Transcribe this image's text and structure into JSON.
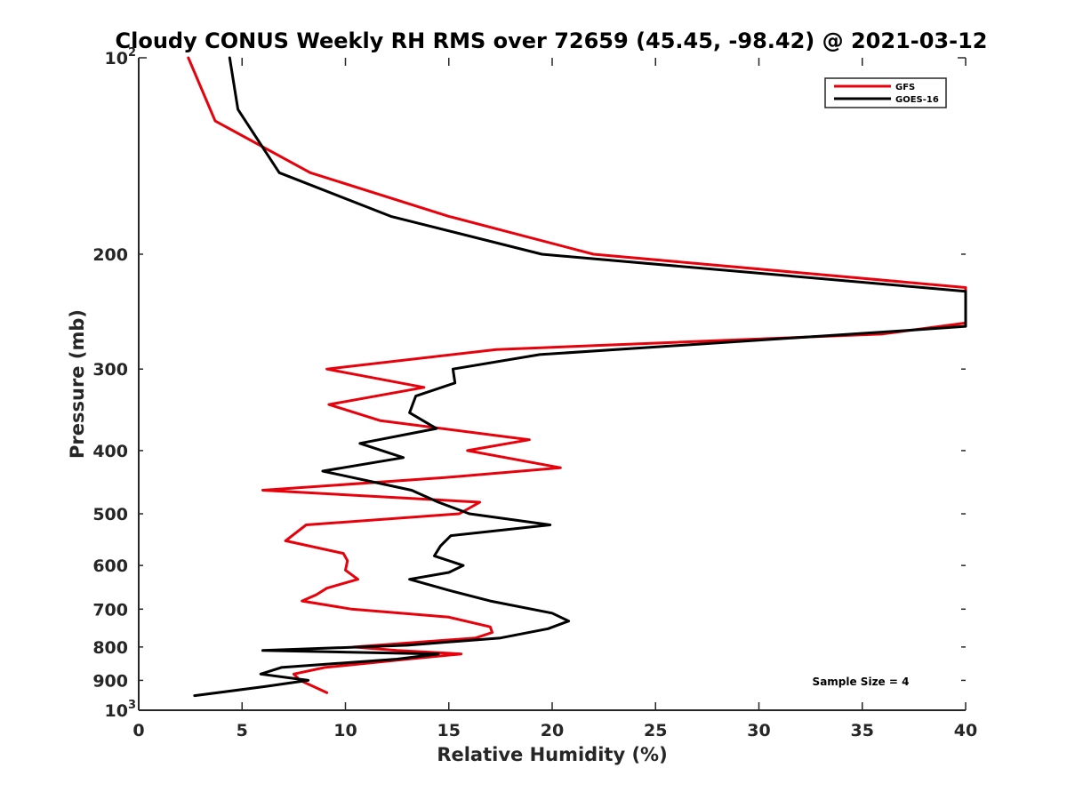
{
  "chart_data": {
    "type": "line",
    "title": "Cloudy CONUS Weekly RH RMS over 72659 (45.45, -98.42) @ 2021-03-12",
    "xlabel": "Relative Humidity (%)",
    "ylabel": "Pressure (mb)",
    "xlim": [
      0,
      40
    ],
    "ylim": [
      100,
      1000
    ],
    "y_scale": "log",
    "y_reversed": true,
    "grid": false,
    "legend_position": "top-right",
    "x_ticks": [
      "0",
      "5",
      "10",
      "15",
      "20",
      "25",
      "30",
      "35",
      "40"
    ],
    "y_ticks": [
      {
        "value": 100,
        "base": "10",
        "exp": "2"
      },
      {
        "value": 200,
        "base": "200",
        "exp": ""
      },
      {
        "value": 300,
        "base": "300",
        "exp": ""
      },
      {
        "value": 400,
        "base": "400",
        "exp": ""
      },
      {
        "value": 500,
        "base": "500",
        "exp": ""
      },
      {
        "value": 600,
        "base": "600",
        "exp": ""
      },
      {
        "value": 700,
        "base": "700",
        "exp": ""
      },
      {
        "value": 800,
        "base": "800",
        "exp": ""
      },
      {
        "value": 900,
        "base": "900",
        "exp": ""
      },
      {
        "value": 1000,
        "base": "10",
        "exp": "3"
      }
    ],
    "series": [
      {
        "name": "GFS",
        "color": "#e8000b",
        "points": [
          [
            2.4,
            100
          ],
          [
            3.7,
            125
          ],
          [
            8.3,
            150
          ],
          [
            15.0,
            175
          ],
          [
            22.0,
            200
          ],
          [
            40.0,
            225
          ],
          [
            40.0,
            255
          ],
          [
            36.0,
            265
          ],
          [
            17.3,
            280
          ],
          [
            9.1,
            300
          ],
          [
            13.8,
            320
          ],
          [
            9.2,
            340
          ],
          [
            11.7,
            360
          ],
          [
            18.9,
            385
          ],
          [
            15.9,
            400
          ],
          [
            20.4,
            425
          ],
          [
            14.8,
            440
          ],
          [
            6.0,
            460
          ],
          [
            16.5,
            480
          ],
          [
            15.5,
            500
          ],
          [
            8.1,
            520
          ],
          [
            7.1,
            550
          ],
          [
            9.9,
            575
          ],
          [
            10.1,
            590
          ],
          [
            10.0,
            610
          ],
          [
            10.6,
            630
          ],
          [
            9.1,
            650
          ],
          [
            8.6,
            665
          ],
          [
            7.9,
            680
          ],
          [
            10.3,
            700
          ],
          [
            15.0,
            720
          ],
          [
            17.0,
            745
          ],
          [
            17.1,
            760
          ],
          [
            16.3,
            775
          ],
          [
            10.4,
            800
          ],
          [
            12.5,
            810
          ],
          [
            15.6,
            820
          ],
          [
            13.0,
            835
          ],
          [
            9.0,
            860
          ],
          [
            7.5,
            880
          ],
          [
            7.8,
            900
          ],
          [
            9.1,
            940
          ]
        ]
      },
      {
        "name": "GOES-16",
        "color": "#000000",
        "points": [
          [
            4.4,
            100
          ],
          [
            4.8,
            120
          ],
          [
            6.8,
            150
          ],
          [
            12.2,
            175
          ],
          [
            19.5,
            200
          ],
          [
            40.0,
            228
          ],
          [
            40.0,
            258
          ],
          [
            37.0,
            262
          ],
          [
            19.4,
            285
          ],
          [
            15.2,
            300
          ],
          [
            15.3,
            315
          ],
          [
            13.4,
            330
          ],
          [
            13.1,
            350
          ],
          [
            14.4,
            370
          ],
          [
            10.7,
            390
          ],
          [
            12.8,
            410
          ],
          [
            8.9,
            430
          ],
          [
            13.2,
            460
          ],
          [
            14.5,
            480
          ],
          [
            16.0,
            500
          ],
          [
            19.9,
            520
          ],
          [
            15.1,
            540
          ],
          [
            14.6,
            560
          ],
          [
            14.3,
            580
          ],
          [
            15.7,
            600
          ],
          [
            15.0,
            615
          ],
          [
            13.1,
            630
          ],
          [
            15.0,
            655
          ],
          [
            17.0,
            680
          ],
          [
            20.0,
            710
          ],
          [
            20.8,
            730
          ],
          [
            19.8,
            750
          ],
          [
            17.5,
            775
          ],
          [
            13.0,
            795
          ],
          [
            6.0,
            810
          ],
          [
            14.5,
            820
          ],
          [
            12.5,
            835
          ],
          [
            6.9,
            860
          ],
          [
            5.9,
            880
          ],
          [
            8.2,
            900
          ],
          [
            6.1,
            920
          ],
          [
            2.7,
            950
          ]
        ]
      }
    ],
    "annotation": "Sample Size = 4"
  }
}
